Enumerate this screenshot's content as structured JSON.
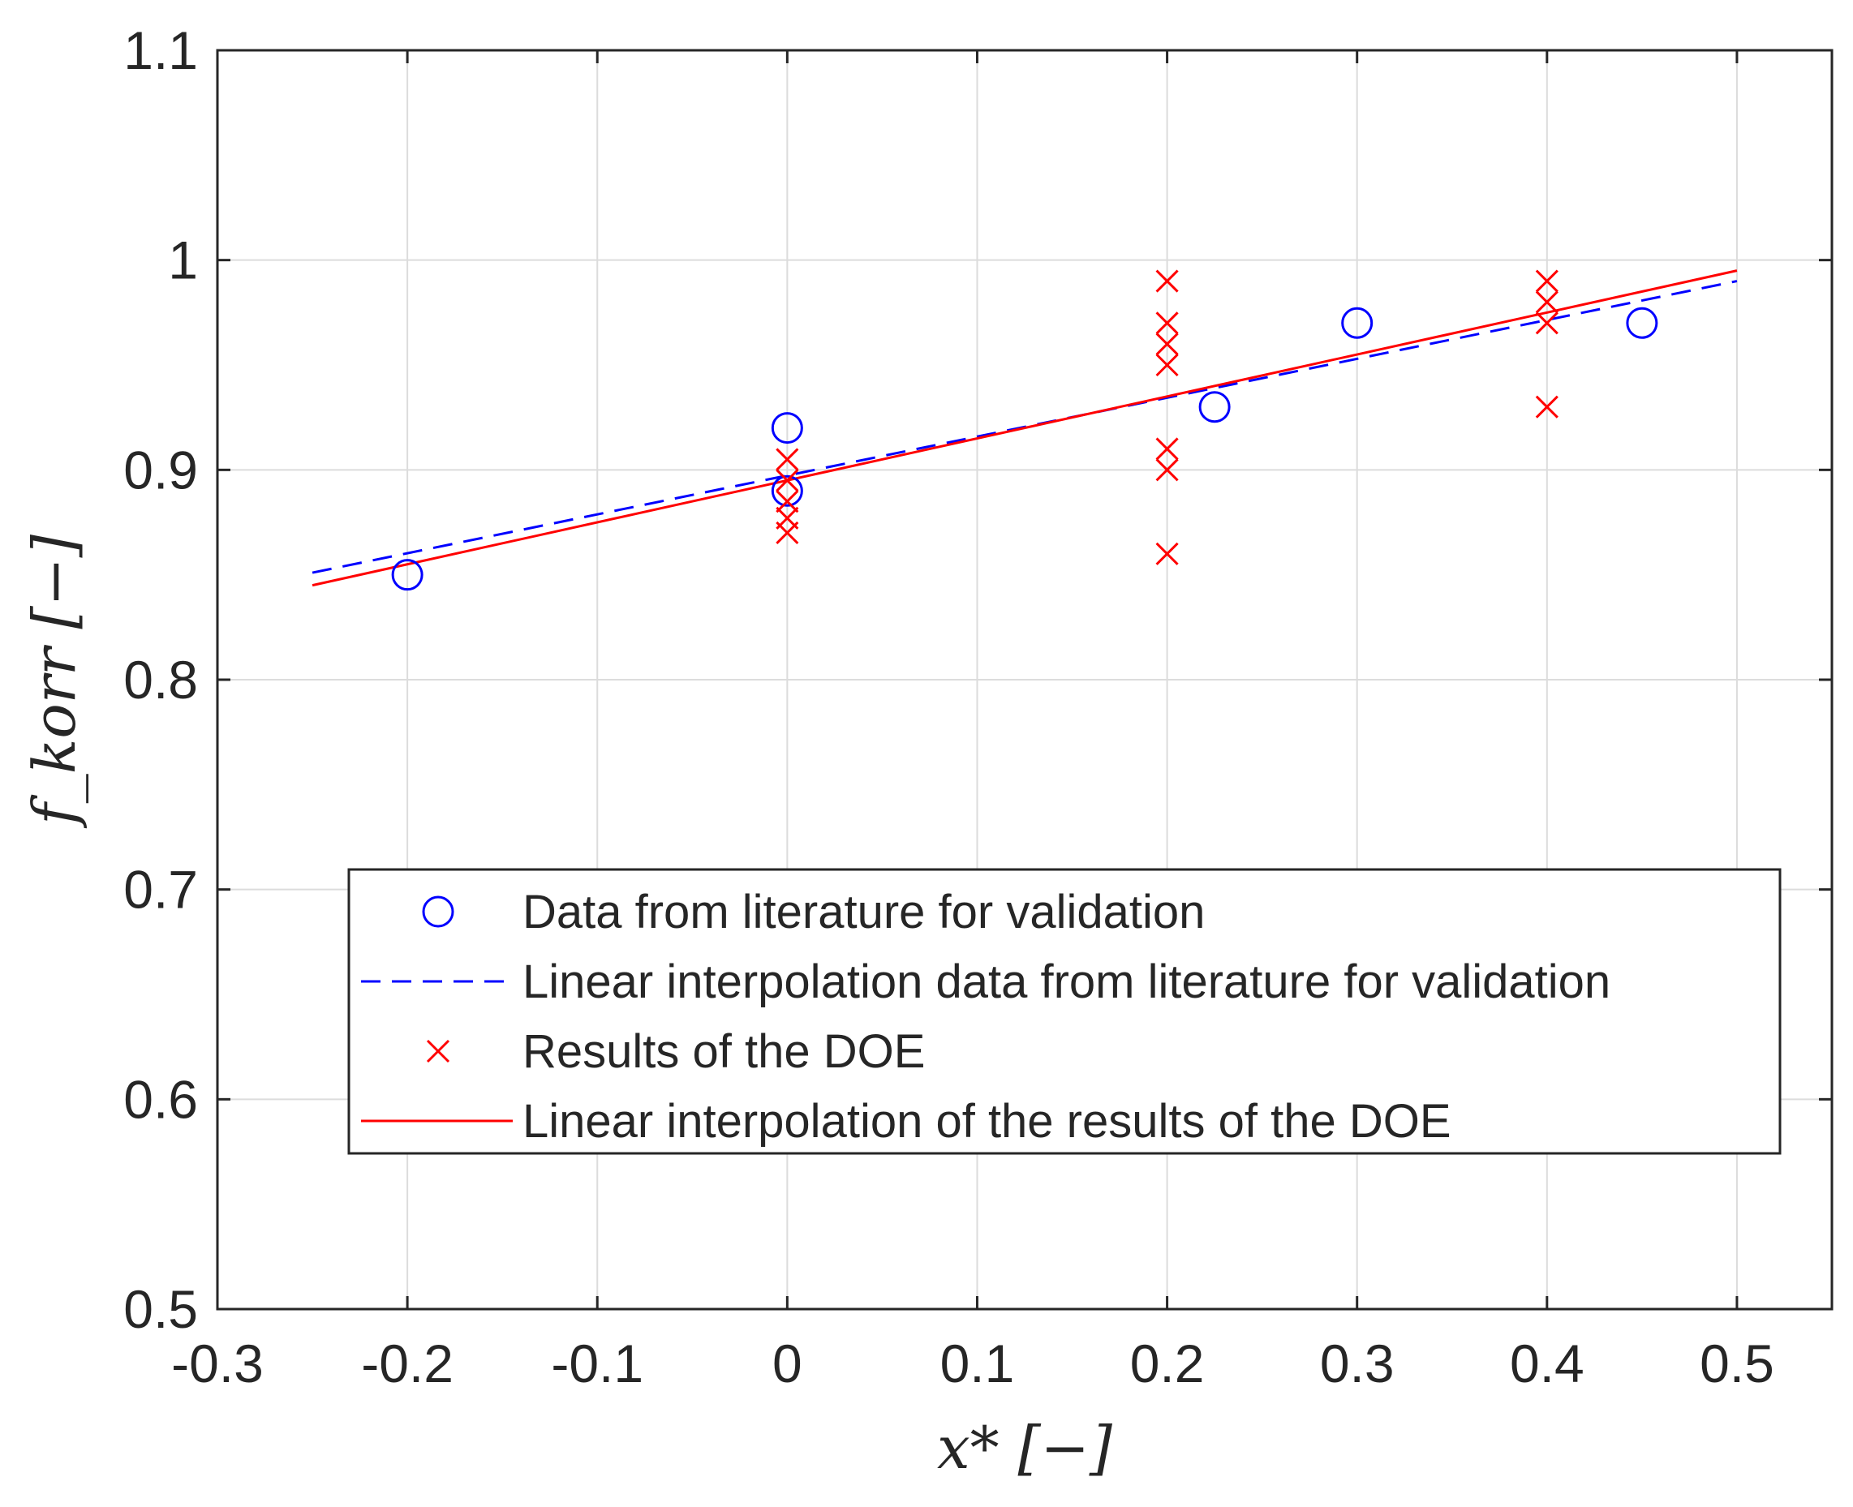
{
  "chart_data": {
    "type": "scatter",
    "xlabel": "x* [−]",
    "ylabel": "f_korr [−]",
    "xlim": [
      -0.3,
      0.55
    ],
    "ylim": [
      0.5,
      1.1
    ],
    "xticks": [
      -0.3,
      -0.2,
      -0.1,
      0,
      0.1,
      0.2,
      0.3,
      0.4,
      0.5
    ],
    "xtick_labels": [
      "-0.3",
      "-0.2",
      "-0.1",
      "0",
      "0.1",
      "0.2",
      "0.3",
      "0.4",
      "0.5"
    ],
    "yticks": [
      0.5,
      0.6,
      0.7,
      0.8,
      0.9,
      1.0,
      1.1
    ],
    "ytick_labels": [
      "0.5",
      "0.6",
      "0.7",
      "0.8",
      "0.9",
      "1",
      "1.1"
    ],
    "grid": true,
    "legend_position": "lower-right",
    "series": [
      {
        "name": "Data from literature for validation",
        "kind": "marker-circle",
        "color": "#0000ff",
        "points": [
          [
            -0.2,
            0.85
          ],
          [
            0,
            0.92
          ],
          [
            0,
            0.89
          ],
          [
            0.225,
            0.93
          ],
          [
            0.3,
            0.97
          ],
          [
            0.45,
            0.97
          ]
        ]
      },
      {
        "name": "Linear interpolation data from literature for validation",
        "kind": "line-dashed",
        "color": "#0000ff",
        "points": [
          [
            -0.25,
            0.851
          ],
          [
            0.5,
            0.99
          ]
        ]
      },
      {
        "name": "Results of the DOE",
        "kind": "marker-x",
        "color": "#ff0000",
        "points": [
          [
            0,
            0.905
          ],
          [
            0,
            0.895
          ],
          [
            0,
            0.885
          ],
          [
            0,
            0.877
          ],
          [
            0,
            0.87
          ],
          [
            0.2,
            0.99
          ],
          [
            0.2,
            0.97
          ],
          [
            0.2,
            0.96
          ],
          [
            0.2,
            0.95
          ],
          [
            0.2,
            0.91
          ],
          [
            0.2,
            0.9
          ],
          [
            0.2,
            0.86
          ],
          [
            0.4,
            0.99
          ],
          [
            0.4,
            0.98
          ],
          [
            0.4,
            0.97
          ],
          [
            0.4,
            0.93
          ]
        ]
      },
      {
        "name": "Linear interpolation of the results of the DOE",
        "kind": "line-solid",
        "color": "#ff0000",
        "points": [
          [
            -0.25,
            0.845
          ],
          [
            0.5,
            0.995
          ]
        ]
      }
    ]
  }
}
